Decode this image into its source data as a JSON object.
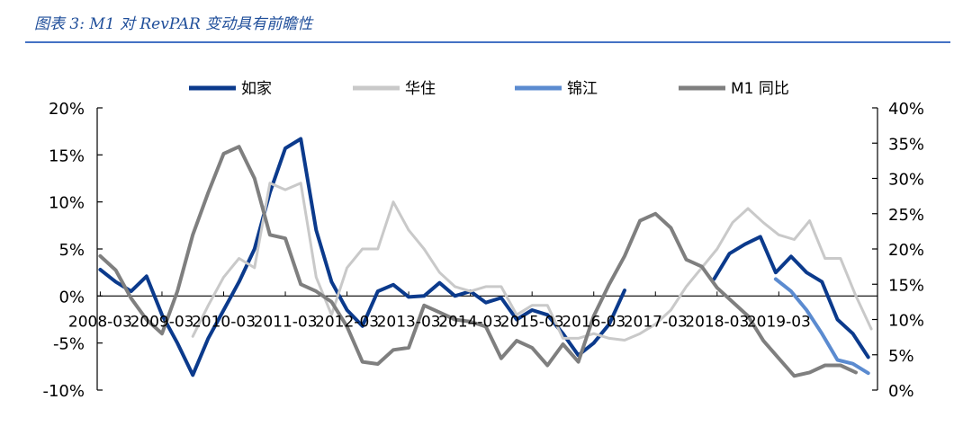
{
  "caption": "图表 3:  M1 对 RevPAR 变动具有前瞻性",
  "chart_data": {
    "type": "line",
    "title": "图表 3:  M1 对 RevPAR 变动具有前瞻性",
    "x_range": [
      "2008-03",
      "2019-12"
    ],
    "x_tick_labels": [
      "2008-03",
      "2009-03",
      "2010-03",
      "2011-03",
      "2012-03",
      "2013-03",
      "2014-03",
      "2015-03",
      "2016-03",
      "2017-03",
      "2018-03",
      "2019-03"
    ],
    "x_tick_positions": [
      2008.0,
      2009.0,
      2010.0,
      2011.0,
      2012.0,
      2013.0,
      2014.0,
      2015.0,
      2016.0,
      2017.0,
      2018.0,
      2019.0
    ],
    "y_left": {
      "min": -0.1,
      "max": 0.2,
      "ticks": [
        -0.1,
        -0.05,
        0,
        0.05,
        0.1,
        0.15,
        0.2
      ],
      "tick_labels": [
        "-10%",
        "-5%",
        "0%",
        "5%",
        "10%",
        "15%",
        "20%"
      ]
    },
    "y_right": {
      "min": 0,
      "max": 0.4,
      "ticks": [
        0,
        0.05,
        0.1,
        0.15,
        0.2,
        0.25,
        0.3,
        0.35,
        0.4
      ],
      "tick_labels": [
        "0%",
        "5%",
        "10%",
        "15%",
        "20%",
        "25%",
        "30%",
        "35%",
        "40%"
      ]
    },
    "legend_position": "top",
    "grid": false,
    "series": [
      {
        "name": "如家",
        "axis": "left",
        "color": "#0b3a8c",
        "width": 4,
        "points": [
          [
            2008.0,
            0.028
          ],
          [
            2008.25,
            0.015
          ],
          [
            2008.5,
            0.005
          ],
          [
            2008.75,
            0.021
          ],
          [
            2009.0,
            -0.02
          ],
          [
            2009.25,
            -0.05
          ],
          [
            2009.5,
            -0.084
          ],
          [
            2009.75,
            -0.045
          ],
          [
            2010.0,
            -0.015
          ],
          [
            2010.25,
            0.015
          ],
          [
            2010.5,
            0.05
          ],
          [
            2010.75,
            0.11
          ],
          [
            2011.0,
            0.157
          ],
          [
            2011.25,
            0.167
          ],
          [
            2011.5,
            0.07
          ],
          [
            2011.75,
            0.015
          ],
          [
            2012.0,
            -0.015
          ],
          [
            2012.25,
            -0.032
          ],
          [
            2012.5,
            0.005
          ],
          [
            2012.75,
            0.012
          ],
          [
            2013.0,
            -0.001
          ],
          [
            2013.25,
            0.0
          ],
          [
            2013.5,
            0.014
          ],
          [
            2013.75,
            0.0
          ],
          [
            2014.0,
            0.005
          ],
          [
            2014.25,
            -0.007
          ],
          [
            2014.5,
            -0.002
          ],
          [
            2014.75,
            -0.025
          ],
          [
            2015.0,
            -0.015
          ],
          [
            2015.25,
            -0.02
          ],
          [
            2015.5,
            -0.04
          ],
          [
            2015.75,
            -0.063
          ],
          [
            2016.0,
            -0.05
          ],
          [
            2016.25,
            -0.03
          ],
          [
            2016.5,
            0.006
          ]
        ]
      },
      {
        "name": "如家",
        "axis": "left",
        "color": "#0b3a8c",
        "width": 4,
        "points": [
          [
            2017.95,
            0.018
          ],
          [
            2018.2,
            0.045
          ],
          [
            2018.45,
            0.055
          ],
          [
            2018.7,
            0.063
          ],
          [
            2018.95,
            0.025
          ],
          [
            2019.2,
            0.042
          ],
          [
            2019.45,
            0.025
          ],
          [
            2019.7,
            0.015
          ],
          [
            2019.95,
            -0.025
          ],
          [
            2020.2,
            -0.04
          ],
          [
            2020.45,
            -0.065
          ]
        ]
      },
      {
        "name": "华住",
        "axis": "left",
        "color": "#c9c9c9",
        "width": 3,
        "points": [
          [
            2009.5,
            -0.043
          ],
          [
            2009.75,
            -0.01
          ],
          [
            2010.0,
            0.02
          ],
          [
            2010.25,
            0.04
          ],
          [
            2010.5,
            0.03
          ],
          [
            2010.75,
            0.12
          ],
          [
            2011.0,
            0.113
          ],
          [
            2011.25,
            0.12
          ],
          [
            2011.5,
            0.02
          ],
          [
            2011.75,
            -0.02
          ],
          [
            2012.0,
            0.03
          ],
          [
            2012.25,
            0.05
          ],
          [
            2012.5,
            0.05
          ],
          [
            2012.75,
            0.1
          ],
          [
            2013.0,
            0.07
          ],
          [
            2013.25,
            0.05
          ],
          [
            2013.5,
            0.025
          ],
          [
            2013.75,
            0.01
          ],
          [
            2014.0,
            0.005
          ],
          [
            2014.25,
            0.01
          ],
          [
            2014.5,
            0.01
          ],
          [
            2014.75,
            -0.02
          ],
          [
            2015.0,
            -0.01
          ],
          [
            2015.25,
            -0.01
          ],
          [
            2015.5,
            -0.045
          ],
          [
            2015.75,
            -0.045
          ],
          [
            2016.0,
            -0.04
          ],
          [
            2016.25,
            -0.045
          ],
          [
            2016.5,
            -0.047
          ],
          [
            2016.75,
            -0.04
          ],
          [
            2017.0,
            -0.03
          ],
          [
            2017.25,
            -0.015
          ],
          [
            2017.5,
            0.01
          ],
          [
            2017.75,
            0.03
          ],
          [
            2018.0,
            0.05
          ],
          [
            2018.25,
            0.078
          ],
          [
            2018.5,
            0.093
          ],
          [
            2018.75,
            0.078
          ],
          [
            2019.0,
            0.065
          ],
          [
            2019.25,
            0.06
          ],
          [
            2019.5,
            0.08
          ],
          [
            2019.75,
            0.04
          ],
          [
            2020.0,
            0.04
          ],
          [
            2020.25,
            0.0
          ],
          [
            2020.5,
            -0.035
          ]
        ]
      },
      {
        "name": "锦江",
        "axis": "left",
        "color": "#5b8bd0",
        "width": 4,
        "points": [
          [
            2018.95,
            0.018
          ],
          [
            2019.2,
            0.005
          ],
          [
            2019.45,
            -0.015
          ],
          [
            2019.7,
            -0.04
          ],
          [
            2019.95,
            -0.068
          ],
          [
            2020.2,
            -0.072
          ],
          [
            2020.45,
            -0.082
          ]
        ]
      },
      {
        "name": "M1 同比",
        "axis": "right",
        "color": "#7f7f7f",
        "width": 4,
        "points": [
          [
            2008.0,
            0.19
          ],
          [
            2008.25,
            0.17
          ],
          [
            2008.5,
            0.13
          ],
          [
            2008.75,
            0.1
          ],
          [
            2009.0,
            0.08
          ],
          [
            2009.25,
            0.14
          ],
          [
            2009.5,
            0.22
          ],
          [
            2009.75,
            0.28
          ],
          [
            2010.0,
            0.335
          ],
          [
            2010.25,
            0.345
          ],
          [
            2010.5,
            0.3
          ],
          [
            2010.75,
            0.22
          ],
          [
            2011.0,
            0.215
          ],
          [
            2011.25,
            0.15
          ],
          [
            2011.5,
            0.14
          ],
          [
            2011.75,
            0.125
          ],
          [
            2012.0,
            0.09
          ],
          [
            2012.25,
            0.04
          ],
          [
            2012.5,
            0.037
          ],
          [
            2012.75,
            0.057
          ],
          [
            2013.0,
            0.06
          ],
          [
            2013.25,
            0.12
          ],
          [
            2013.5,
            0.11
          ],
          [
            2013.75,
            0.1
          ],
          [
            2014.0,
            0.097
          ],
          [
            2014.25,
            0.09
          ],
          [
            2014.5,
            0.045
          ],
          [
            2014.75,
            0.07
          ],
          [
            2015.0,
            0.06
          ],
          [
            2015.25,
            0.035
          ],
          [
            2015.5,
            0.065
          ],
          [
            2015.75,
            0.04
          ],
          [
            2016.0,
            0.105
          ],
          [
            2016.25,
            0.15
          ],
          [
            2016.5,
            0.19
          ],
          [
            2016.75,
            0.24
          ],
          [
            2017.0,
            0.25
          ],
          [
            2017.25,
            0.23
          ],
          [
            2017.5,
            0.185
          ],
          [
            2017.75,
            0.175
          ],
          [
            2018.0,
            0.145
          ],
          [
            2018.25,
            0.125
          ],
          [
            2018.5,
            0.105
          ],
          [
            2018.75,
            0.07
          ],
          [
            2019.0,
            0.045
          ],
          [
            2019.25,
            0.02
          ],
          [
            2019.5,
            0.025
          ],
          [
            2019.75,
            0.035
          ],
          [
            2020.0,
            0.035
          ],
          [
            2020.25,
            0.025
          ]
        ]
      }
    ],
    "legend": [
      {
        "name": "如家",
        "color": "#0b3a8c"
      },
      {
        "name": "华住",
        "color": "#c9c9c9"
      },
      {
        "name": "锦江",
        "color": "#5b8bd0"
      },
      {
        "name": "M1 同比",
        "color": "#7f7f7f"
      }
    ]
  }
}
